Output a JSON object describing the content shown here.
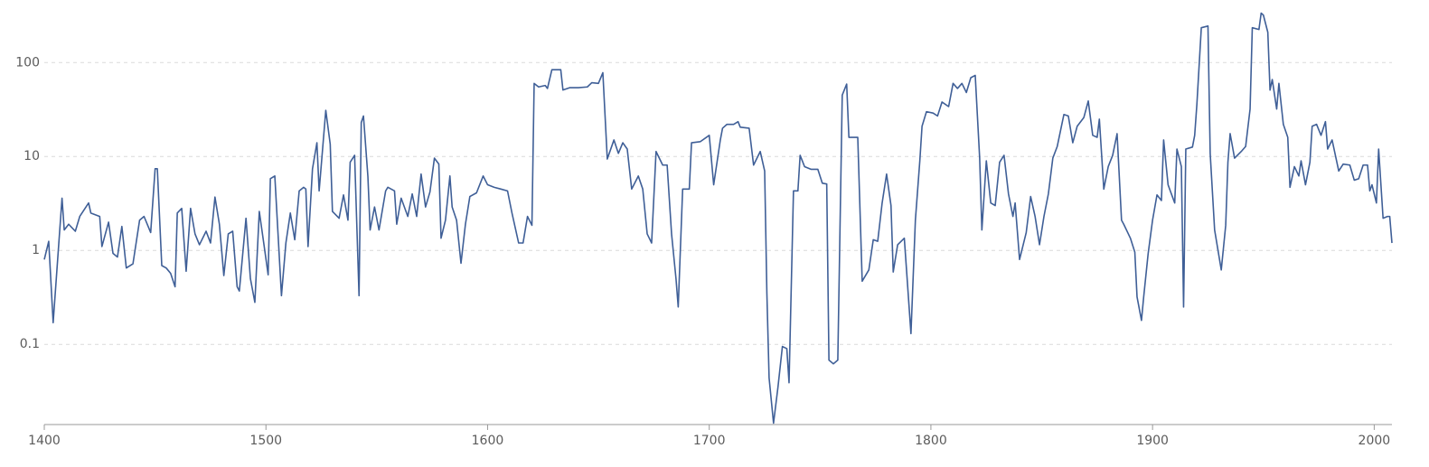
{
  "chart_data": {
    "type": "line",
    "log_y": true,
    "grid": true,
    "xlim": [
      1400,
      2008
    ],
    "xticks": [
      1400,
      1500,
      1600,
      1700,
      1800,
      1900,
      2000
    ],
    "ylim": [
      0.014,
      340
    ],
    "yticks": [
      0.1,
      1,
      10,
      100
    ],
    "x": [
      1400,
      1402,
      1404,
      1408,
      1409,
      1411,
      1414,
      1416,
      1420,
      1421,
      1425,
      1426,
      1429,
      1431,
      1433,
      1435,
      1437,
      1440,
      1443,
      1445,
      1448,
      1450,
      1451,
      1453,
      1455,
      1457,
      1459,
      1460,
      1462,
      1464,
      1466,
      1468,
      1470,
      1473,
      1475,
      1477,
      1479,
      1481,
      1483,
      1485,
      1487,
      1488,
      1491,
      1493,
      1495,
      1497,
      1499,
      1501,
      1502,
      1504,
      1507,
      1509,
      1511,
      1513,
      1515,
      1517,
      1518,
      1519,
      1521,
      1523,
      1524,
      1527,
      1529,
      1530,
      1533,
      1535,
      1537,
      1538,
      1540,
      1542,
      1543,
      1544,
      1546,
      1547,
      1549,
      1551,
      1554,
      1555,
      1558,
      1559,
      1561,
      1564,
      1566,
      1568,
      1570,
      1572,
      1574,
      1576,
      1578,
      1579,
      1581,
      1583,
      1584,
      1586,
      1588,
      1590,
      1592,
      1595,
      1598,
      1600,
      1603,
      1606,
      1609,
      1611,
      1614,
      1616,
      1618,
      1620,
      1621,
      1623,
      1626,
      1627,
      1629,
      1633,
      1634,
      1637,
      1641,
      1645,
      1647,
      1650,
      1652,
      1654,
      1657,
      1659,
      1661,
      1663,
      1665,
      1668,
      1670,
      1672,
      1674,
      1676,
      1679,
      1681,
      1683,
      1685,
      1686,
      1688,
      1691,
      1692,
      1696,
      1700,
      1702,
      1705,
      1706,
      1708,
      1711,
      1713,
      1714,
      1718,
      1720,
      1723,
      1725,
      1726,
      1727,
      1729,
      1731,
      1733,
      1735,
      1736,
      1738,
      1740,
      1741,
      1743,
      1746,
      1749,
      1751,
      1753,
      1754,
      1756,
      1758,
      1760,
      1762,
      1763,
      1767,
      1769,
      1772,
      1774,
      1776,
      1778,
      1780,
      1782,
      1783,
      1785,
      1788,
      1789,
      1791,
      1793,
      1795,
      1796,
      1798,
      1801,
      1803,
      1805,
      1808,
      1810,
      1812,
      1814,
      1816,
      1818,
      1820,
      1822,
      1823,
      1825,
      1827,
      1829,
      1831,
      1833,
      1835,
      1837,
      1838,
      1840,
      1843,
      1845,
      1847,
      1849,
      1851,
      1853,
      1855,
      1857,
      1860,
      1862,
      1864,
      1866,
      1869,
      1871,
      1873,
      1875,
      1876,
      1878,
      1880,
      1882,
      1884,
      1886,
      1887,
      1890,
      1892,
      1893,
      1895,
      1896,
      1898,
      1900,
      1902,
      1904,
      1905,
      1907,
      1908,
      1910,
      1911,
      1913,
      1914,
      1915,
      1918,
      1919,
      1920,
      1922,
      1925,
      1926,
      1928,
      1931,
      1933,
      1934,
      1935,
      1937,
      1940,
      1942,
      1944,
      1945,
      1948,
      1949,
      1950,
      1952,
      1953,
      1954,
      1956,
      1957,
      1959,
      1961,
      1962,
      1964,
      1966,
      1967,
      1969,
      1971,
      1972,
      1974,
      1976,
      1978,
      1979,
      1981,
      1984,
      1986,
      1989,
      1991,
      1993,
      1995,
      1997,
      1998,
      1999,
      2001,
      2002,
      2004,
      2006,
      2007,
      2008
    ],
    "series": [
      {
        "color": "#3f5f97",
        "values": [
          0.8,
          1.25,
          0.17,
          3.6,
          1.65,
          1.9,
          1.6,
          2.3,
          3.2,
          2.5,
          2.3,
          1.1,
          2,
          0.93,
          0.85,
          1.8,
          0.65,
          0.72,
          2.1,
          2.3,
          1.55,
          7.4,
          7.4,
          0.69,
          0.65,
          0.57,
          0.41,
          2.5,
          2.8,
          0.6,
          2.8,
          1.5,
          1.15,
          1.6,
          1.2,
          3.7,
          1.9,
          0.54,
          1.5,
          1.6,
          0.41,
          0.37,
          2.2,
          0.5,
          0.28,
          2.6,
          1.2,
          0.55,
          5.8,
          6.2,
          0.33,
          1.2,
          2.5,
          1.3,
          4.3,
          4.7,
          4.5,
          1.1,
          7.4,
          14,
          4.3,
          31,
          13.5,
          2.6,
          2.2,
          3.9,
          2.1,
          8.7,
          10.3,
          0.33,
          23,
          27,
          6.1,
          1.65,
          2.9,
          1.65,
          4.3,
          4.7,
          4.3,
          1.9,
          3.6,
          2.3,
          4,
          2.3,
          6.5,
          2.9,
          4.2,
          9.6,
          8.3,
          1.35,
          2.1,
          6.2,
          2.9,
          2.1,
          0.73,
          1.9,
          3.75,
          4.1,
          6.2,
          5,
          4.7,
          4.5,
          4.3,
          2.5,
          1.2,
          1.2,
          2.3,
          1.85,
          60,
          55,
          57,
          53,
          84,
          84,
          51,
          54,
          54,
          55,
          61,
          60,
          78,
          9.4,
          15,
          10.8,
          14,
          12,
          4.5,
          6.2,
          4.5,
          1.5,
          1.2,
          11.3,
          8.1,
          8.1,
          1.5,
          0.5,
          0.25,
          4.5,
          4.5,
          14,
          14.4,
          16.8,
          5,
          15,
          20,
          22,
          22,
          23.5,
          20.5,
          20,
          8.1,
          11.3,
          7,
          0.35,
          0.044,
          0.0145,
          0.035,
          0.095,
          0.09,
          0.039,
          4.3,
          4.3,
          10.3,
          7.8,
          7.3,
          7.3,
          5.2,
          5.1,
          0.068,
          0.062,
          0.068,
          45,
          59,
          16,
          16,
          0.47,
          0.62,
          1.3,
          1.25,
          3.2,
          6.5,
          3,
          0.59,
          1.15,
          1.35,
          0.62,
          0.13,
          2.1,
          9,
          21,
          30,
          29,
          27,
          38,
          34,
          60,
          53,
          60,
          48,
          69,
          73,
          9.6,
          1.65,
          9,
          3.2,
          3,
          8.7,
          10.3,
          4,
          2.3,
          3.2,
          0.8,
          1.55,
          3.75,
          2.3,
          1.15,
          2.3,
          4,
          9.6,
          12.8,
          28,
          27,
          14,
          21,
          26,
          39,
          16.8,
          16,
          25,
          4.5,
          7.8,
          10.3,
          17.5,
          2.1,
          1.9,
          1.35,
          0.96,
          0.32,
          0.18,
          0.32,
          0.92,
          2.1,
          3.9,
          3.4,
          15,
          5,
          4.3,
          3.2,
          12,
          7.8,
          0.25,
          12,
          12.6,
          16.8,
          36,
          235,
          245,
          10.8,
          1.65,
          0.62,
          1.85,
          8.7,
          17.5,
          9.6,
          11.3,
          12.8,
          32,
          235,
          225,
          336,
          320,
          210,
          51,
          66,
          32,
          60,
          22,
          16,
          4.7,
          7.8,
          6.2,
          9,
          5,
          8.7,
          21,
          22,
          16.8,
          23.5,
          12,
          15,
          7,
          8.3,
          8.1,
          5.6,
          5.8,
          8.1,
          8.1,
          4.3,
          5,
          3.2,
          12,
          2.2,
          2.3,
          2.3,
          1.2
        ]
      }
    ]
  }
}
